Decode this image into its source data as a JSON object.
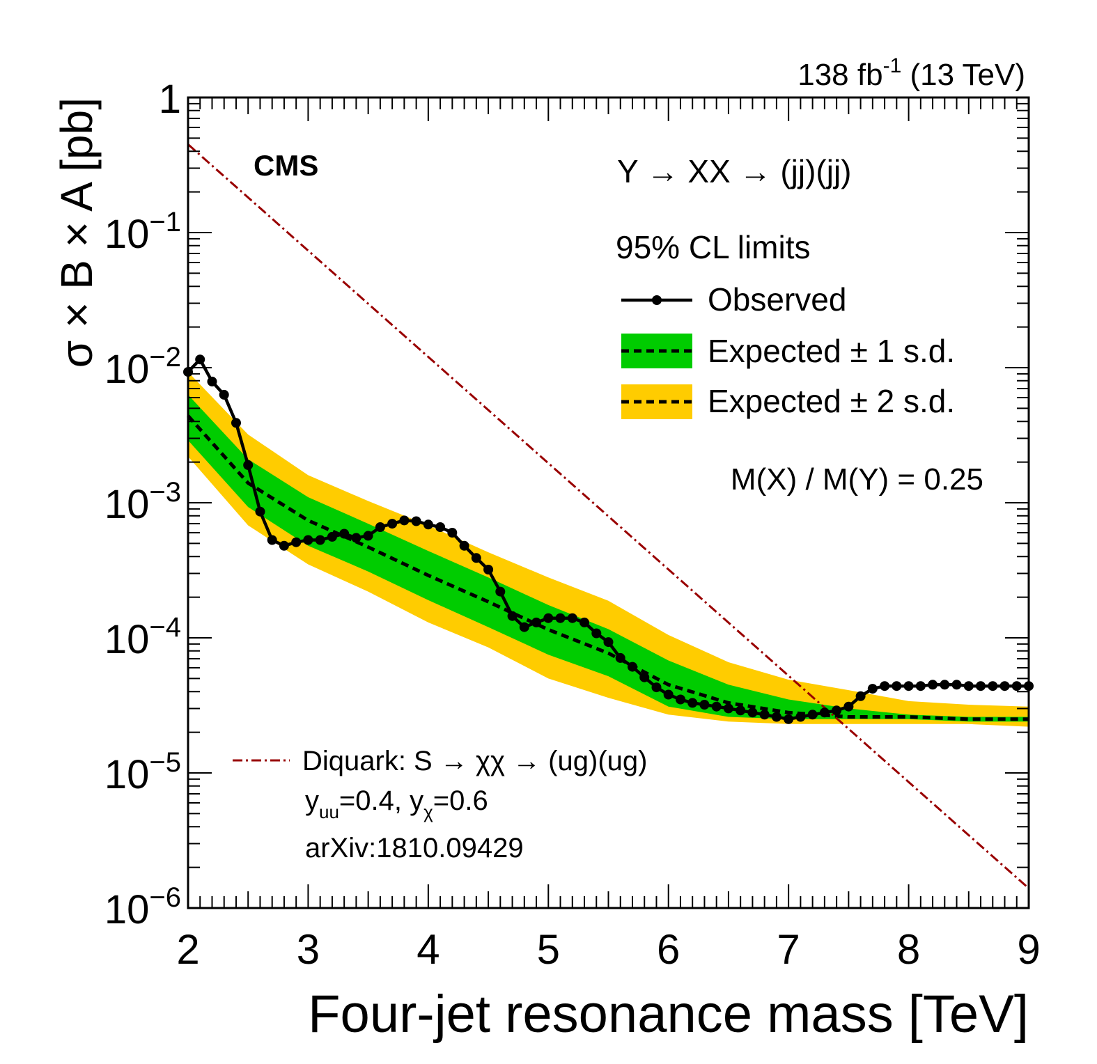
{
  "lumi_label": "138 fb",
  "lumi_sup": "-1",
  "lumi_energy": "(13 TeV)",
  "experiment": "CMS",
  "process": "Y → XX → (jj)(jj)",
  "legend_title": "95% CL limits",
  "legend": {
    "observed": "Observed",
    "exp1": "Expected ± 1 s.d.",
    "exp2": "Expected ± 2 s.d."
  },
  "mass_ratio": "M(X) / M(Y) = 0.25",
  "model": {
    "line1": "Diquark: S → χχ → (ug)(ug)",
    "y_uu_sym": "y",
    "y_uu_sub": "uu",
    "y_uu_val": "=0.4, ",
    "y_chi_sym": "y",
    "y_chi_sub": "χ",
    "y_chi_val": "=0.6",
    "ref": "arXiv:1810.09429"
  },
  "colors": {
    "band1": "#00cc00",
    "band2": "#ffcc00",
    "theory": "#990000",
    "observed": "#000000"
  },
  "chart_data": {
    "type": "line",
    "title": "",
    "xlabel": "Four-jet resonance mass [TeV]",
    "ylabel": "σ × B × A [pb]",
    "xlim": [
      2,
      9
    ],
    "ylim": [
      1e-06,
      1
    ],
    "yscale": "log",
    "x_ticks": [
      "2",
      "3",
      "4",
      "5",
      "6",
      "7",
      "8",
      "9"
    ],
    "y_ticks": [
      {
        "base": "1",
        "exp": ""
      },
      {
        "base": "10",
        "exp": "−1"
      },
      {
        "base": "10",
        "exp": "−2"
      },
      {
        "base": "10",
        "exp": "−3"
      },
      {
        "base": "10",
        "exp": "−4"
      },
      {
        "base": "10",
        "exp": "−5"
      },
      {
        "base": "10",
        "exp": "−6"
      }
    ],
    "grid": false,
    "legend_position": "top-right",
    "series": [
      {
        "name": "Observed",
        "x": [
          2.0,
          2.1,
          2.2,
          2.3,
          2.4,
          2.5,
          2.6,
          2.7,
          2.8,
          2.9,
          3.0,
          3.1,
          3.2,
          3.3,
          3.4,
          3.5,
          3.6,
          3.7,
          3.8,
          3.9,
          4.0,
          4.1,
          4.2,
          4.3,
          4.4,
          4.5,
          4.6,
          4.7,
          4.8,
          4.9,
          5.0,
          5.1,
          5.2,
          5.3,
          5.4,
          5.5,
          5.6,
          5.7,
          5.8,
          5.9,
          6.0,
          6.1,
          6.2,
          6.3,
          6.4,
          6.5,
          6.6,
          6.7,
          6.8,
          6.9,
          7.0,
          7.1,
          7.2,
          7.3,
          7.4,
          7.5,
          7.6,
          7.7,
          7.8,
          7.9,
          8.0,
          8.1,
          8.2,
          8.3,
          8.4,
          8.5,
          8.6,
          8.7,
          8.8,
          8.9,
          9.0
        ],
        "y": [
          0.0093,
          0.0115,
          0.0079,
          0.0063,
          0.0039,
          0.0019,
          0.00086,
          0.00053,
          0.00048,
          0.00051,
          0.00053,
          0.00053,
          0.00056,
          0.00059,
          0.00055,
          0.00057,
          0.00066,
          0.0007,
          0.00074,
          0.00073,
          0.00069,
          0.00066,
          0.0006,
          0.00048,
          0.00039,
          0.00032,
          0.00022,
          0.000145,
          0.00012,
          0.00013,
          0.00014,
          0.00014,
          0.00014,
          0.00013,
          0.000108,
          9.3e-05,
          7.1e-05,
          6.1e-05,
          5.1e-05,
          4.3e-05,
          3.8e-05,
          3.5e-05,
          3.3e-05,
          3.2e-05,
          3.1e-05,
          3e-05,
          2.9e-05,
          2.8e-05,
          2.7e-05,
          2.6e-05,
          2.5e-05,
          2.6e-05,
          2.7e-05,
          2.8e-05,
          2.9e-05,
          3.1e-05,
          3.7e-05,
          4.2e-05,
          4.4e-05,
          4.4e-05,
          4.4e-05,
          4.4e-05,
          4.5e-05,
          4.5e-05,
          4.5e-05,
          4.4e-05,
          4.4e-05,
          4.4e-05,
          4.4e-05,
          4.4e-05,
          4.4e-05
        ]
      },
      {
        "name": "Expected",
        "x": [
          2.0,
          2.5,
          3.0,
          3.5,
          4.0,
          4.5,
          5.0,
          5.5,
          6.0,
          6.5,
          7.0,
          7.5,
          8.0,
          8.5,
          9.0
        ],
        "median": [
          0.0044,
          0.0014,
          0.00074,
          0.00047,
          0.00029,
          0.000185,
          0.000115,
          7.7e-05,
          4.5e-05,
          3.3e-05,
          2.8e-05,
          2.6e-05,
          2.6e-05,
          2.5e-05,
          2.5e-05
        ],
        "minus1": [
          0.0029,
          0.00093,
          0.00048,
          0.00031,
          0.00019,
          0.00012,
          7.5e-05,
          5.2e-05,
          3.1e-05,
          2.6e-05,
          2.5e-05,
          2.5e-05,
          2.5e-05,
          2.4e-05,
          2.4e-05
        ],
        "plus1": [
          0.0063,
          0.0021,
          0.0011,
          0.0007,
          0.00044,
          0.00028,
          0.000175,
          0.000116,
          6.8e-05,
          4.5e-05,
          3.5e-05,
          3e-05,
          2.7e-05,
          2.6e-05,
          2.6e-05
        ],
        "minus2": [
          0.0022,
          0.00068,
          0.00035,
          0.00022,
          0.00013,
          8.5e-05,
          5e-05,
          3.6e-05,
          2.7e-05,
          2.4e-05,
          2.3e-05,
          2.3e-05,
          2.3e-05,
          2.3e-05,
          2.2e-05
        ],
        "plus2": [
          0.0093,
          0.0032,
          0.0016,
          0.00103,
          0.00068,
          0.00043,
          0.00028,
          0.000188,
          0.000105,
          6.6e-05,
          4.9e-05,
          4.1e-05,
          3.4e-05,
          3.2e-05,
          3.1e-05
        ]
      },
      {
        "name": "Diquark: S → χχ → (ug)(ug)",
        "x": [
          2.0,
          9.0
        ],
        "y": [
          0.45,
          1.4e-06
        ]
      }
    ]
  }
}
